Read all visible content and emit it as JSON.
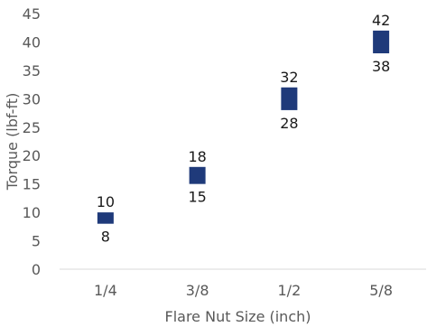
{
  "chart_data": {
    "type": "bar",
    "subtype": "floating-range",
    "title": "",
    "xlabel": "Flare Nut Size (inch)",
    "ylabel": "Torque (lbf-ft)",
    "categories": [
      "1/4",
      "3/8",
      "1/2",
      "5/8"
    ],
    "low": [
      8,
      15,
      28,
      38
    ],
    "high": [
      10,
      18,
      32,
      42
    ],
    "low_labels": [
      "8",
      "15",
      "28",
      "38"
    ],
    "high_labels": [
      "10",
      "18",
      "32",
      "42"
    ],
    "ylim": [
      0,
      45
    ],
    "yticks": [
      "0",
      "5",
      "10",
      "15",
      "20",
      "25",
      "30",
      "35",
      "40",
      "45"
    ],
    "grid": false,
    "legend": "none",
    "colors": {
      "bar": "#1f3a7a",
      "axis": "#d9d9d9",
      "text": "#595959",
      "label": "#1a1a1a"
    }
  }
}
